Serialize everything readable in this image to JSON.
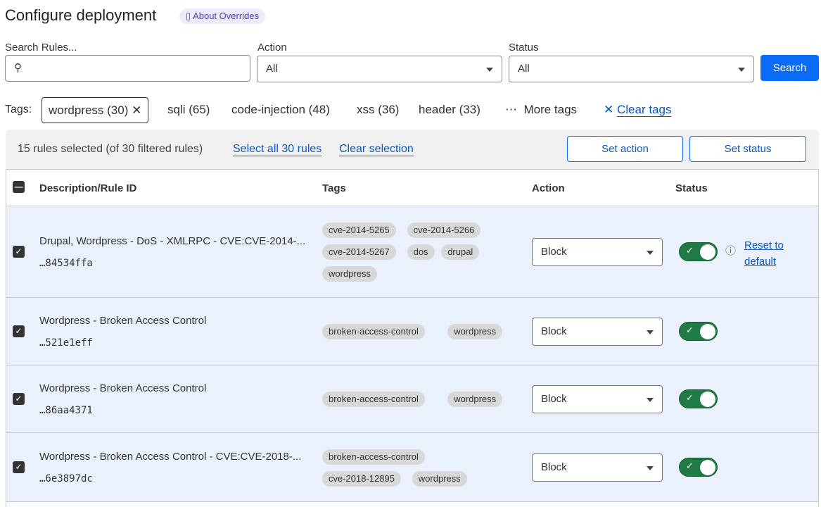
{
  "header": {
    "title": "Configure deployment",
    "about_label": "About Overrides"
  },
  "filters": {
    "search_label": "Search Rules...",
    "search_value": "",
    "action_label": "Action",
    "action_value": "All",
    "status_label": "Status",
    "status_value": "All",
    "search_button": "Search"
  },
  "tags": {
    "label": "Tags:",
    "active": "wordpress (30)",
    "items": [
      "sqli (65)",
      "code-injection (48)",
      "xss (36)",
      "header (33)"
    ],
    "more": "More tags",
    "clear": "Clear tags"
  },
  "selection": {
    "summary": "15 rules selected (of 30 filtered rules)",
    "select_all": "Select all 30 rules",
    "clear": "Clear selection",
    "set_action": "Set action",
    "set_status": "Set status"
  },
  "table": {
    "columns": [
      "Description/Rule ID",
      "Tags",
      "Action",
      "Status"
    ],
    "rows": [
      {
        "description": "Drupal, Wordpress - DoS - XMLRPC - CVE:CVE-2014-...",
        "id": "…84534ffa",
        "tags": [
          [
            "cve-2014-5265",
            "cve-2014-5266"
          ],
          [
            "cve-2014-5267",
            "dos",
            "drupal"
          ],
          [
            "wordpress"
          ]
        ],
        "action": "Block",
        "enabled": true,
        "selected": true,
        "reset": "Reset to default"
      },
      {
        "description": "Wordpress - Broken Access Control",
        "id": "…521e1eff",
        "tags": [
          [
            "broken-access-control",
            "wordpress"
          ]
        ],
        "action": "Block",
        "enabled": true,
        "selected": true
      },
      {
        "description": "Wordpress - Broken Access Control",
        "id": "…86aa4371",
        "tags": [
          [
            "broken-access-control",
            "wordpress"
          ]
        ],
        "action": "Block",
        "enabled": true,
        "selected": true
      },
      {
        "description": "Wordpress - Broken Access Control - CVE:CVE-2018-...",
        "id": "…6e3897dc",
        "tags": [
          [
            "broken-access-control"
          ],
          [
            "cve-2018-12895",
            "wordpress"
          ]
        ],
        "action": "Block",
        "enabled": true,
        "selected": true
      }
    ]
  },
  "colors": {
    "primary": "#0a6cf5",
    "toggle_on": "#1f7a43",
    "row_selected": "#eaf1fc"
  }
}
